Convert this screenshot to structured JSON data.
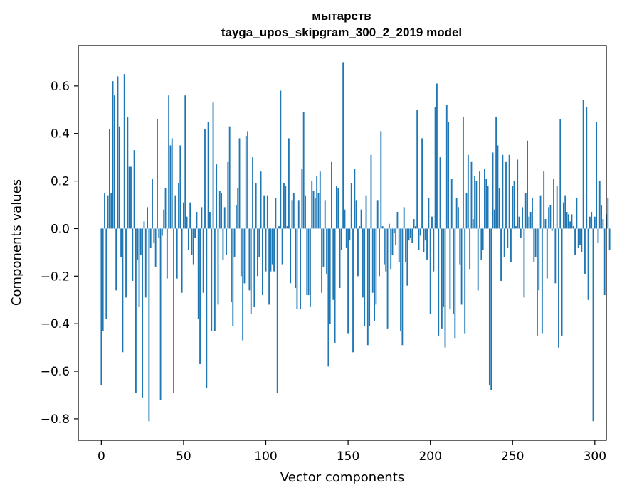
{
  "chart_data": {
    "type": "bar",
    "title": "мытарств",
    "subtitle": "tayga_upos_skipgram_300_2_2019 model",
    "xlabel": "Vector components",
    "ylabel": "Components values",
    "xlim": [
      -14,
      307
    ],
    "ylim": [
      -0.89,
      0.77
    ],
    "xticks": [
      0,
      50,
      100,
      150,
      200,
      250,
      300
    ],
    "yticks": [
      -0.8,
      -0.6,
      -0.4,
      -0.2,
      0.0,
      0.2,
      0.4,
      0.6
    ],
    "ytick_labels": [
      "−0.8",
      "−0.6",
      "−0.4",
      "−0.2",
      "0.0",
      "0.2",
      "0.4",
      "0.6"
    ],
    "xtick_labels": [
      "0",
      "50",
      "100",
      "150",
      "200",
      "250",
      "300"
    ],
    "color": "#1f77b4",
    "values": [
      -0.66,
      -0.43,
      0.15,
      -0.38,
      0.14,
      0.42,
      0.15,
      0.62,
      0.56,
      -0.26,
      0.64,
      0.43,
      -0.12,
      -0.52,
      0.65,
      -0.29,
      0.47,
      0.26,
      0.26,
      -0.22,
      0.33,
      -0.69,
      -0.13,
      -0.33,
      -0.11,
      -0.71,
      0.03,
      -0.29,
      0.09,
      -0.81,
      -0.08,
      0.21,
      -0.06,
      -0.16,
      0.46,
      -0.04,
      -0.72,
      -0.03,
      0.08,
      0.17,
      -0.21,
      0.56,
      0.35,
      0.38,
      -0.69,
      0.14,
      -0.21,
      0.19,
      0.35,
      -0.27,
      0.11,
      0.56,
      0.05,
      -0.09,
      0.11,
      -0.11,
      -0.15,
      -0.04,
      0.07,
      -0.38,
      -0.57,
      0.09,
      -0.27,
      0.42,
      -0.67,
      0.45,
      0.07,
      -0.43,
      0.53,
      -0.43,
      0.27,
      -0.32,
      0.16,
      0.15,
      -0.13,
      0.09,
      -0.11,
      0.28,
      0.43,
      -0.31,
      -0.41,
      -0.12,
      0.1,
      0.17,
      0.38,
      -0.2,
      -0.47,
      -0.23,
      0.39,
      0.41,
      -0.26,
      -0.36,
      0.3,
      -0.33,
      0.19,
      -0.2,
      -0.12,
      0.24,
      -0.28,
      0.14,
      -0.18,
      0.14,
      -0.32,
      -0.18,
      -0.15,
      -0.18,
      0.13,
      -0.69,
      0.01,
      0.58,
      -0.15,
      0.19,
      0.18,
      0.01,
      0.38,
      -0.23,
      0.12,
      0.15,
      -0.25,
      -0.34,
      0.12,
      -0.34,
      0.25,
      0.49,
      0.14,
      -0.28,
      -0.28,
      -0.33,
      0.2,
      0.16,
      0.13,
      0.22,
      0.15,
      0.24,
      -0.27,
      -0.16,
      0.12,
      -0.19,
      -0.58,
      -0.4,
      0.28,
      -0.3,
      -0.48,
      0.18,
      0.17,
      -0.25,
      -0.09,
      0.7,
      0.08,
      -0.08,
      -0.44,
      -0.05,
      0.19,
      -0.52,
      0.25,
      0.12,
      -0.2,
      0.01,
      0.08,
      -0.29,
      -0.41,
      0.14,
      -0.49,
      -0.41,
      0.31,
      -0.27,
      -0.39,
      -0.32,
      0.12,
      -0.2,
      0.41,
      0.01,
      -0.15,
      -0.18,
      -0.42,
      0.02,
      -0.17,
      -0.11,
      -0.02,
      -0.07,
      0.07,
      -0.14,
      -0.43,
      -0.49,
      0.09,
      -0.14,
      -0.24,
      -0.05,
      -0.04,
      -0.06,
      0.04,
      0.01,
      0.5,
      -0.09,
      -0.03,
      0.38,
      -0.1,
      -0.05,
      -0.13,
      0.13,
      -0.36,
      0.05,
      -0.18,
      0.51,
      0.61,
      -0.45,
      0.3,
      -0.42,
      -0.33,
      -0.5,
      0.52,
      0.45,
      -0.34,
      0.21,
      -0.36,
      -0.46,
      0.13,
      0.09,
      -0.15,
      -0.32,
      0.47,
      -0.44,
      0.15,
      0.31,
      -0.17,
      0.28,
      0.04,
      0.22,
      0.2,
      -0.26,
      0.24,
      -0.13,
      -0.09,
      0.25,
      0.21,
      0.18,
      -0.66,
      -0.68,
      0.32,
      0.08,
      0.47,
      0.35,
      0.17,
      -0.22,
      0.31,
      -0.12,
      0.28,
      -0.08,
      0.31,
      -0.14,
      0.18,
      0.2,
      0.01,
      0.29,
      0.05,
      -0.04,
      0.09,
      -0.29,
      0.15,
      0.37,
      0.05,
      0.07,
      0.13,
      -0.14,
      -0.12,
      -0.45,
      -0.26,
      0.14,
      -0.44,
      0.24,
      0.04,
      -0.21,
      0.09,
      0.1,
      -0.01,
      0.21,
      -0.23,
      0.18,
      -0.5,
      0.46,
      -0.45,
      0.11,
      0.14,
      0.07,
      0.06,
      0.03,
      0.06,
      0.01,
      -0.11,
      0.13,
      -0.08,
      -0.07,
      -0.1,
      0.54,
      -0.19,
      0.51,
      -0.3,
      0.05,
      0.07,
      -0.81,
      0.05,
      0.45,
      -0.06,
      0.2,
      0.1,
      0.04,
      -0.28,
      0.06,
      0.13,
      -0.09
    ]
  }
}
